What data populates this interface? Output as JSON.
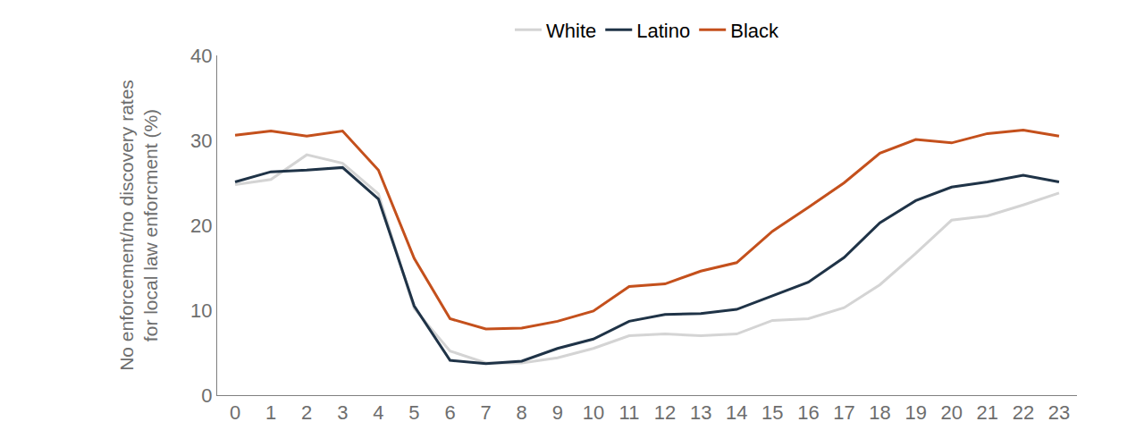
{
  "chart_data": {
    "type": "line",
    "y_label": "No enforcement/no discovery rates for local law enforcment (%)",
    "x": [
      0,
      1,
      2,
      3,
      4,
      5,
      6,
      7,
      8,
      9,
      10,
      11,
      12,
      13,
      14,
      15,
      16,
      17,
      18,
      19,
      20,
      21,
      22,
      23
    ],
    "xlim": [
      -0.5,
      23.5
    ],
    "xticks": [
      0,
      1,
      2,
      3,
      4,
      5,
      6,
      7,
      8,
      9,
      10,
      11,
      12,
      13,
      14,
      15,
      16,
      17,
      18,
      19,
      20,
      21,
      22,
      23
    ],
    "ylim": [
      0,
      40
    ],
    "yticks": [
      0,
      10,
      20,
      30,
      40
    ],
    "grid": false,
    "legend": "top",
    "series": [
      {
        "name": "White",
        "color": "#d4d4d4",
        "values": [
          24.8,
          25.4,
          28.3,
          27.3,
          23.7,
          10.2,
          5.2,
          3.8,
          3.8,
          4.4,
          5.5,
          7.0,
          7.2,
          7.0,
          7.2,
          8.8,
          9.0,
          10.3,
          13.0,
          16.7,
          20.6,
          21.1,
          22.4,
          23.8
        ]
      },
      {
        "name": "Latino",
        "color": "#1f3347",
        "values": [
          25.1,
          26.3,
          26.5,
          26.8,
          23.1,
          10.5,
          4.1,
          3.7,
          4.0,
          5.5,
          6.6,
          8.7,
          9.5,
          9.6,
          10.1,
          11.7,
          13.3,
          16.2,
          20.3,
          22.9,
          24.5,
          25.1,
          25.9,
          25.1
        ]
      },
      {
        "name": "Black",
        "color": "#c4501c",
        "values": [
          30.6,
          31.1,
          30.5,
          31.1,
          26.5,
          16.1,
          9.0,
          7.8,
          7.9,
          8.7,
          9.9,
          12.8,
          13.1,
          14.6,
          15.6,
          19.3,
          22.1,
          25.0,
          28.5,
          30.1,
          29.7,
          30.8,
          31.2,
          30.5
        ]
      }
    ]
  }
}
